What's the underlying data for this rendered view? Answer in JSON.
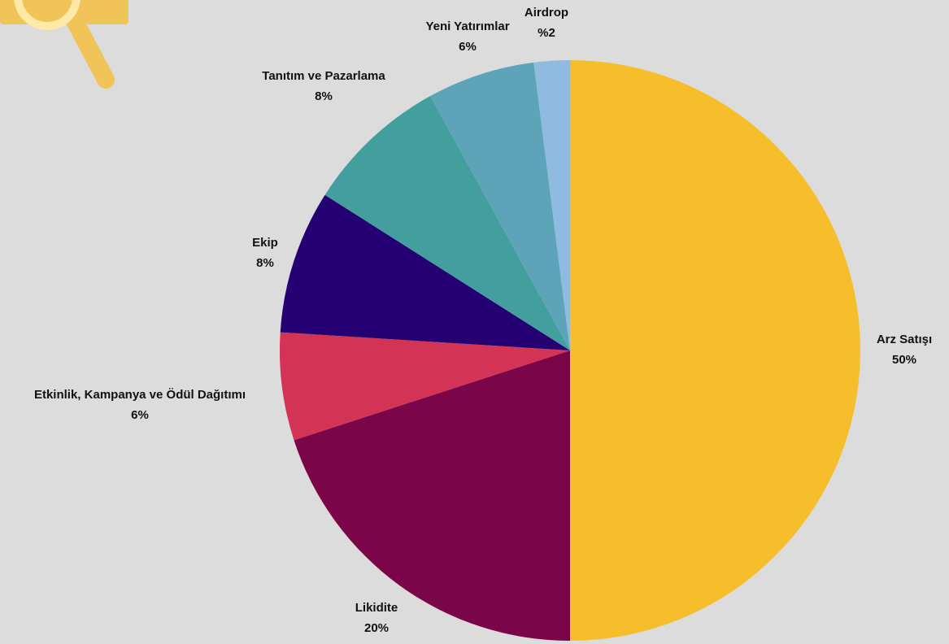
{
  "chart_data": {
    "type": "pie",
    "start": "12 o'clock",
    "direction": "clockwise",
    "slices": [
      {
        "name": "Arz Satışı",
        "value": 50,
        "value_label": "50%",
        "color": "#f5be2a"
      },
      {
        "name": "Likidite",
        "value": 20,
        "value_label": "20%",
        "color": "#7b0549"
      },
      {
        "name": "Etkinlik, Kampanya ve Ödül Dağıtımı",
        "value": 6,
        "value_label": "6%",
        "color": "#d33455"
      },
      {
        "name": "Ekip",
        "value": 8,
        "value_label": "8%",
        "color": "#240073"
      },
      {
        "name": "Tanıtım ve Pazarlama",
        "value": 8,
        "value_label": "8%",
        "color": "#439f9d"
      },
      {
        "name": "Yeni Yatırımlar",
        "value": 6,
        "value_label": "6%",
        "color": "#5ea4b9"
      },
      {
        "name": "Airdrop",
        "value": 2,
        "value_label": "%2",
        "color": "#8fbbe0"
      }
    ]
  },
  "decoration": {
    "logo_icon": "magnifier-folder-icon",
    "logo_color": "#f1c45a"
  }
}
